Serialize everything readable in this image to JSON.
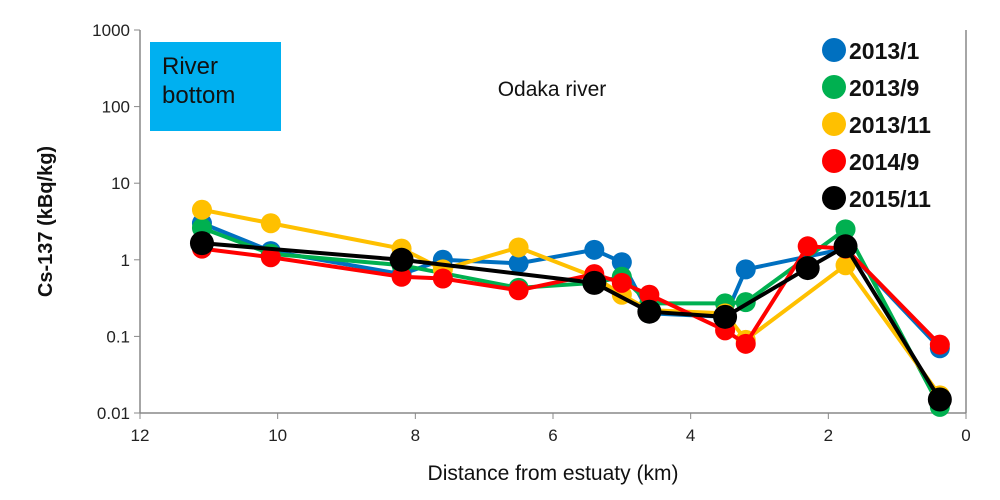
{
  "chart_data": {
    "type": "line",
    "title": "Odaka river",
    "annotation": "River bottom",
    "xlabel": "Distance from estuaty (km)",
    "ylabel": "Cs-137 (kBq/kg)",
    "xlim": [
      12,
      0
    ],
    "x_reversed": true,
    "ylim": [
      0.01,
      1000
    ],
    "y_scale": "log",
    "x_ticks": [
      "12",
      "10",
      "8",
      "6",
      "4",
      "2",
      "0"
    ],
    "y_ticks": [
      "1000",
      "100",
      "10",
      "1",
      "0.1",
      "0.01"
    ],
    "grid": false,
    "legend_position": "top-right",
    "series": [
      {
        "name": "2013/1",
        "color": "#0070c0",
        "points": [
          [
            11.1,
            3.0
          ],
          [
            10.1,
            1.3
          ],
          [
            8.2,
            0.65
          ],
          [
            7.6,
            1.0
          ],
          [
            6.5,
            0.9
          ],
          [
            5.4,
            1.35
          ],
          [
            5.0,
            0.93
          ],
          [
            4.6,
            0.2
          ],
          [
            3.5,
            0.18
          ],
          [
            3.2,
            0.75
          ],
          [
            1.75,
            1.4
          ],
          [
            0.38,
            0.07
          ]
        ]
      },
      {
        "name": "2013/9",
        "color": "#00b050",
        "points": [
          [
            11.1,
            2.6
          ],
          [
            10.1,
            1.2
          ],
          [
            8.2,
            0.85
          ],
          [
            6.5,
            0.43
          ],
          [
            5.4,
            0.5
          ],
          [
            5.0,
            0.6
          ],
          [
            4.6,
            0.27
          ],
          [
            3.5,
            0.27
          ],
          [
            3.2,
            0.28
          ],
          [
            1.75,
            2.5
          ],
          [
            0.38,
            0.012
          ]
        ]
      },
      {
        "name": "2013/11",
        "color": "#ffc000",
        "points": [
          [
            11.1,
            4.5
          ],
          [
            10.1,
            3.0
          ],
          [
            8.2,
            1.4
          ],
          [
            7.6,
            0.75
          ],
          [
            6.5,
            1.45
          ],
          [
            5.4,
            0.6
          ],
          [
            5.0,
            0.35
          ],
          [
            4.6,
            0.22
          ],
          [
            3.5,
            0.2
          ],
          [
            3.2,
            0.09
          ],
          [
            1.75,
            0.85
          ],
          [
            0.38,
            0.017
          ]
        ]
      },
      {
        "name": "2014/9",
        "color": "#ff0000",
        "points": [
          [
            11.1,
            1.4
          ],
          [
            10.1,
            1.08
          ],
          [
            8.2,
            0.6
          ],
          [
            7.6,
            0.57
          ],
          [
            6.5,
            0.4
          ],
          [
            5.4,
            0.65
          ],
          [
            5.0,
            0.5
          ],
          [
            4.6,
            0.35
          ],
          [
            3.5,
            0.12
          ],
          [
            3.2,
            0.08
          ],
          [
            2.3,
            1.5
          ],
          [
            1.75,
            1.4
          ],
          [
            0.38,
            0.078
          ]
        ]
      },
      {
        "name": "2015/11",
        "color": "#000000",
        "points": [
          [
            11.1,
            1.65
          ],
          [
            8.2,
            1.0
          ],
          [
            5.4,
            0.5
          ],
          [
            4.6,
            0.21
          ],
          [
            3.5,
            0.18
          ],
          [
            2.3,
            0.78
          ],
          [
            1.75,
            1.5
          ],
          [
            0.38,
            0.015
          ]
        ]
      }
    ]
  }
}
